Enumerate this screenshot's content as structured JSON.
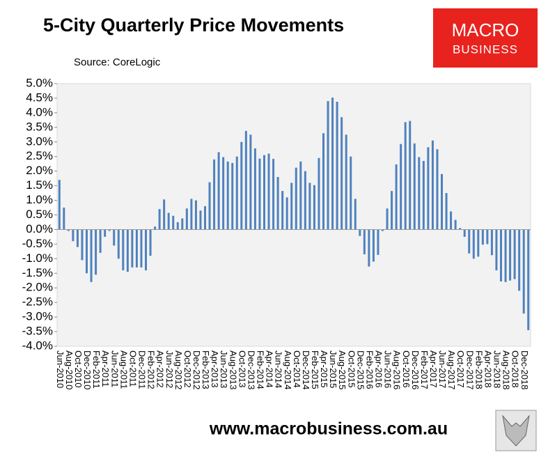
{
  "chart_data": {
    "type": "bar",
    "title": "5-City Quarterly Price Movements",
    "subtitle": "Source: CoreLogic",
    "logo": [
      "MACRO",
      "BUSINESS"
    ],
    "footer": "www.macrobusiness.com.au",
    "color": "#4f81bd",
    "categories": [
      "Jun-2010",
      null,
      "Aug-2010",
      null,
      "Oct-2010",
      null,
      "Dec-2010",
      null,
      "Feb-2011",
      null,
      "Apr-2011",
      null,
      "Jun-2011",
      null,
      "Aug-2011",
      null,
      "Oct-2011",
      null,
      "Dec-2011",
      null,
      "Feb-2012",
      null,
      "Apr-2012",
      null,
      "Jun-2012",
      null,
      "Aug-2012",
      null,
      "Oct-2012",
      null,
      "Dec-2012",
      null,
      "Feb-2013",
      null,
      "Apr-2013",
      null,
      "Jun-2013",
      null,
      "Aug-2013",
      null,
      "Oct-2013",
      null,
      "Dec-2013",
      null,
      "Feb-2014",
      null,
      "Apr-2014",
      null,
      "Jun-2014",
      null,
      "Aug-2014",
      null,
      "Oct-2014",
      null,
      "Dec-2014",
      null,
      "Feb-2015",
      null,
      "Apr-2015",
      null,
      "Jun-2015",
      null,
      "Aug-2015",
      null,
      "Oct-2015",
      null,
      "Dec-2015",
      null,
      "Feb-2016",
      null,
      "Apr-2016",
      null,
      "Jun-2016",
      null,
      "Aug-2016",
      null,
      "Oct-2016",
      null,
      "Dec-2016",
      null,
      "Feb-2017",
      null,
      "Apr-2017",
      null,
      "Jun-2017",
      null,
      "Aug-2017",
      null,
      "Oct-2017",
      null,
      "Dec-2017",
      null,
      "Feb-2018",
      null,
      "Apr-2018",
      null,
      "Jun-2018",
      null,
      "Aug-2018",
      null,
      "Oct-2018",
      null,
      "Dec-2018",
      null
    ],
    "values": [
      1.7,
      0.75,
      -0.05,
      -0.4,
      -0.6,
      -1.05,
      -1.5,
      -1.8,
      -1.55,
      -0.8,
      -0.25,
      -0.05,
      -0.55,
      -1.0,
      -1.4,
      -1.45,
      -1.3,
      -1.3,
      -1.3,
      -1.4,
      -0.9,
      0.1,
      0.7,
      1.03,
      0.57,
      0.47,
      0.25,
      0.38,
      0.72,
      1.05,
      1.0,
      0.65,
      0.8,
      1.62,
      2.4,
      2.65,
      2.48,
      2.33,
      2.28,
      2.5,
      3.0,
      3.38,
      3.25,
      2.78,
      2.43,
      2.55,
      2.6,
      2.42,
      1.8,
      1.32,
      1.1,
      1.6,
      2.12,
      2.33,
      2.0,
      1.6,
      1.52,
      2.45,
      3.3,
      4.4,
      4.52,
      4.38,
      3.85,
      3.25,
      2.5,
      1.05,
      -0.22,
      -0.85,
      -1.27,
      -1.1,
      -0.87,
      -0.05,
      0.72,
      1.32,
      2.23,
      2.93,
      3.68,
      3.72,
      2.95,
      2.48,
      2.35,
      2.82,
      3.05,
      2.75,
      1.9,
      1.25,
      0.62,
      0.33,
      0.05,
      -0.25,
      -0.82,
      -1.0,
      -0.93,
      -0.52,
      -0.5,
      -0.88,
      -1.4,
      -1.78,
      -1.8,
      -1.75,
      -1.7,
      -2.1,
      -2.88,
      -3.45
    ],
    "ylim": [
      -4,
      5
    ],
    "yticks": [
      {
        "value": -4,
        "label": "-4.0%"
      },
      {
        "value": -3.5,
        "label": "-3.5%"
      },
      {
        "value": -3,
        "label": "-3.0%"
      },
      {
        "value": -2.5,
        "label": "-2.5%"
      },
      {
        "value": -2,
        "label": "-2.0%"
      },
      {
        "value": -1.5,
        "label": "-1.5%"
      },
      {
        "value": -1,
        "label": "-1.0%"
      },
      {
        "value": -0.5,
        "label": "-0.5%"
      },
      {
        "value": 0,
        "label": "0.0%"
      },
      {
        "value": 0.5,
        "label": "0.5%"
      },
      {
        "value": 1,
        "label": "1.0%"
      },
      {
        "value": 1.5,
        "label": "1.5%"
      },
      {
        "value": 2,
        "label": "2.0%"
      },
      {
        "value": 2.5,
        "label": "2.5%"
      },
      {
        "value": 3,
        "label": "3.0%"
      },
      {
        "value": 3.5,
        "label": "3.5%"
      },
      {
        "value": 4,
        "label": "4.0%"
      },
      {
        "value": 4.5,
        "label": "4.5%"
      },
      {
        "value": 5,
        "label": "5.0%"
      }
    ],
    "grid": false
  }
}
